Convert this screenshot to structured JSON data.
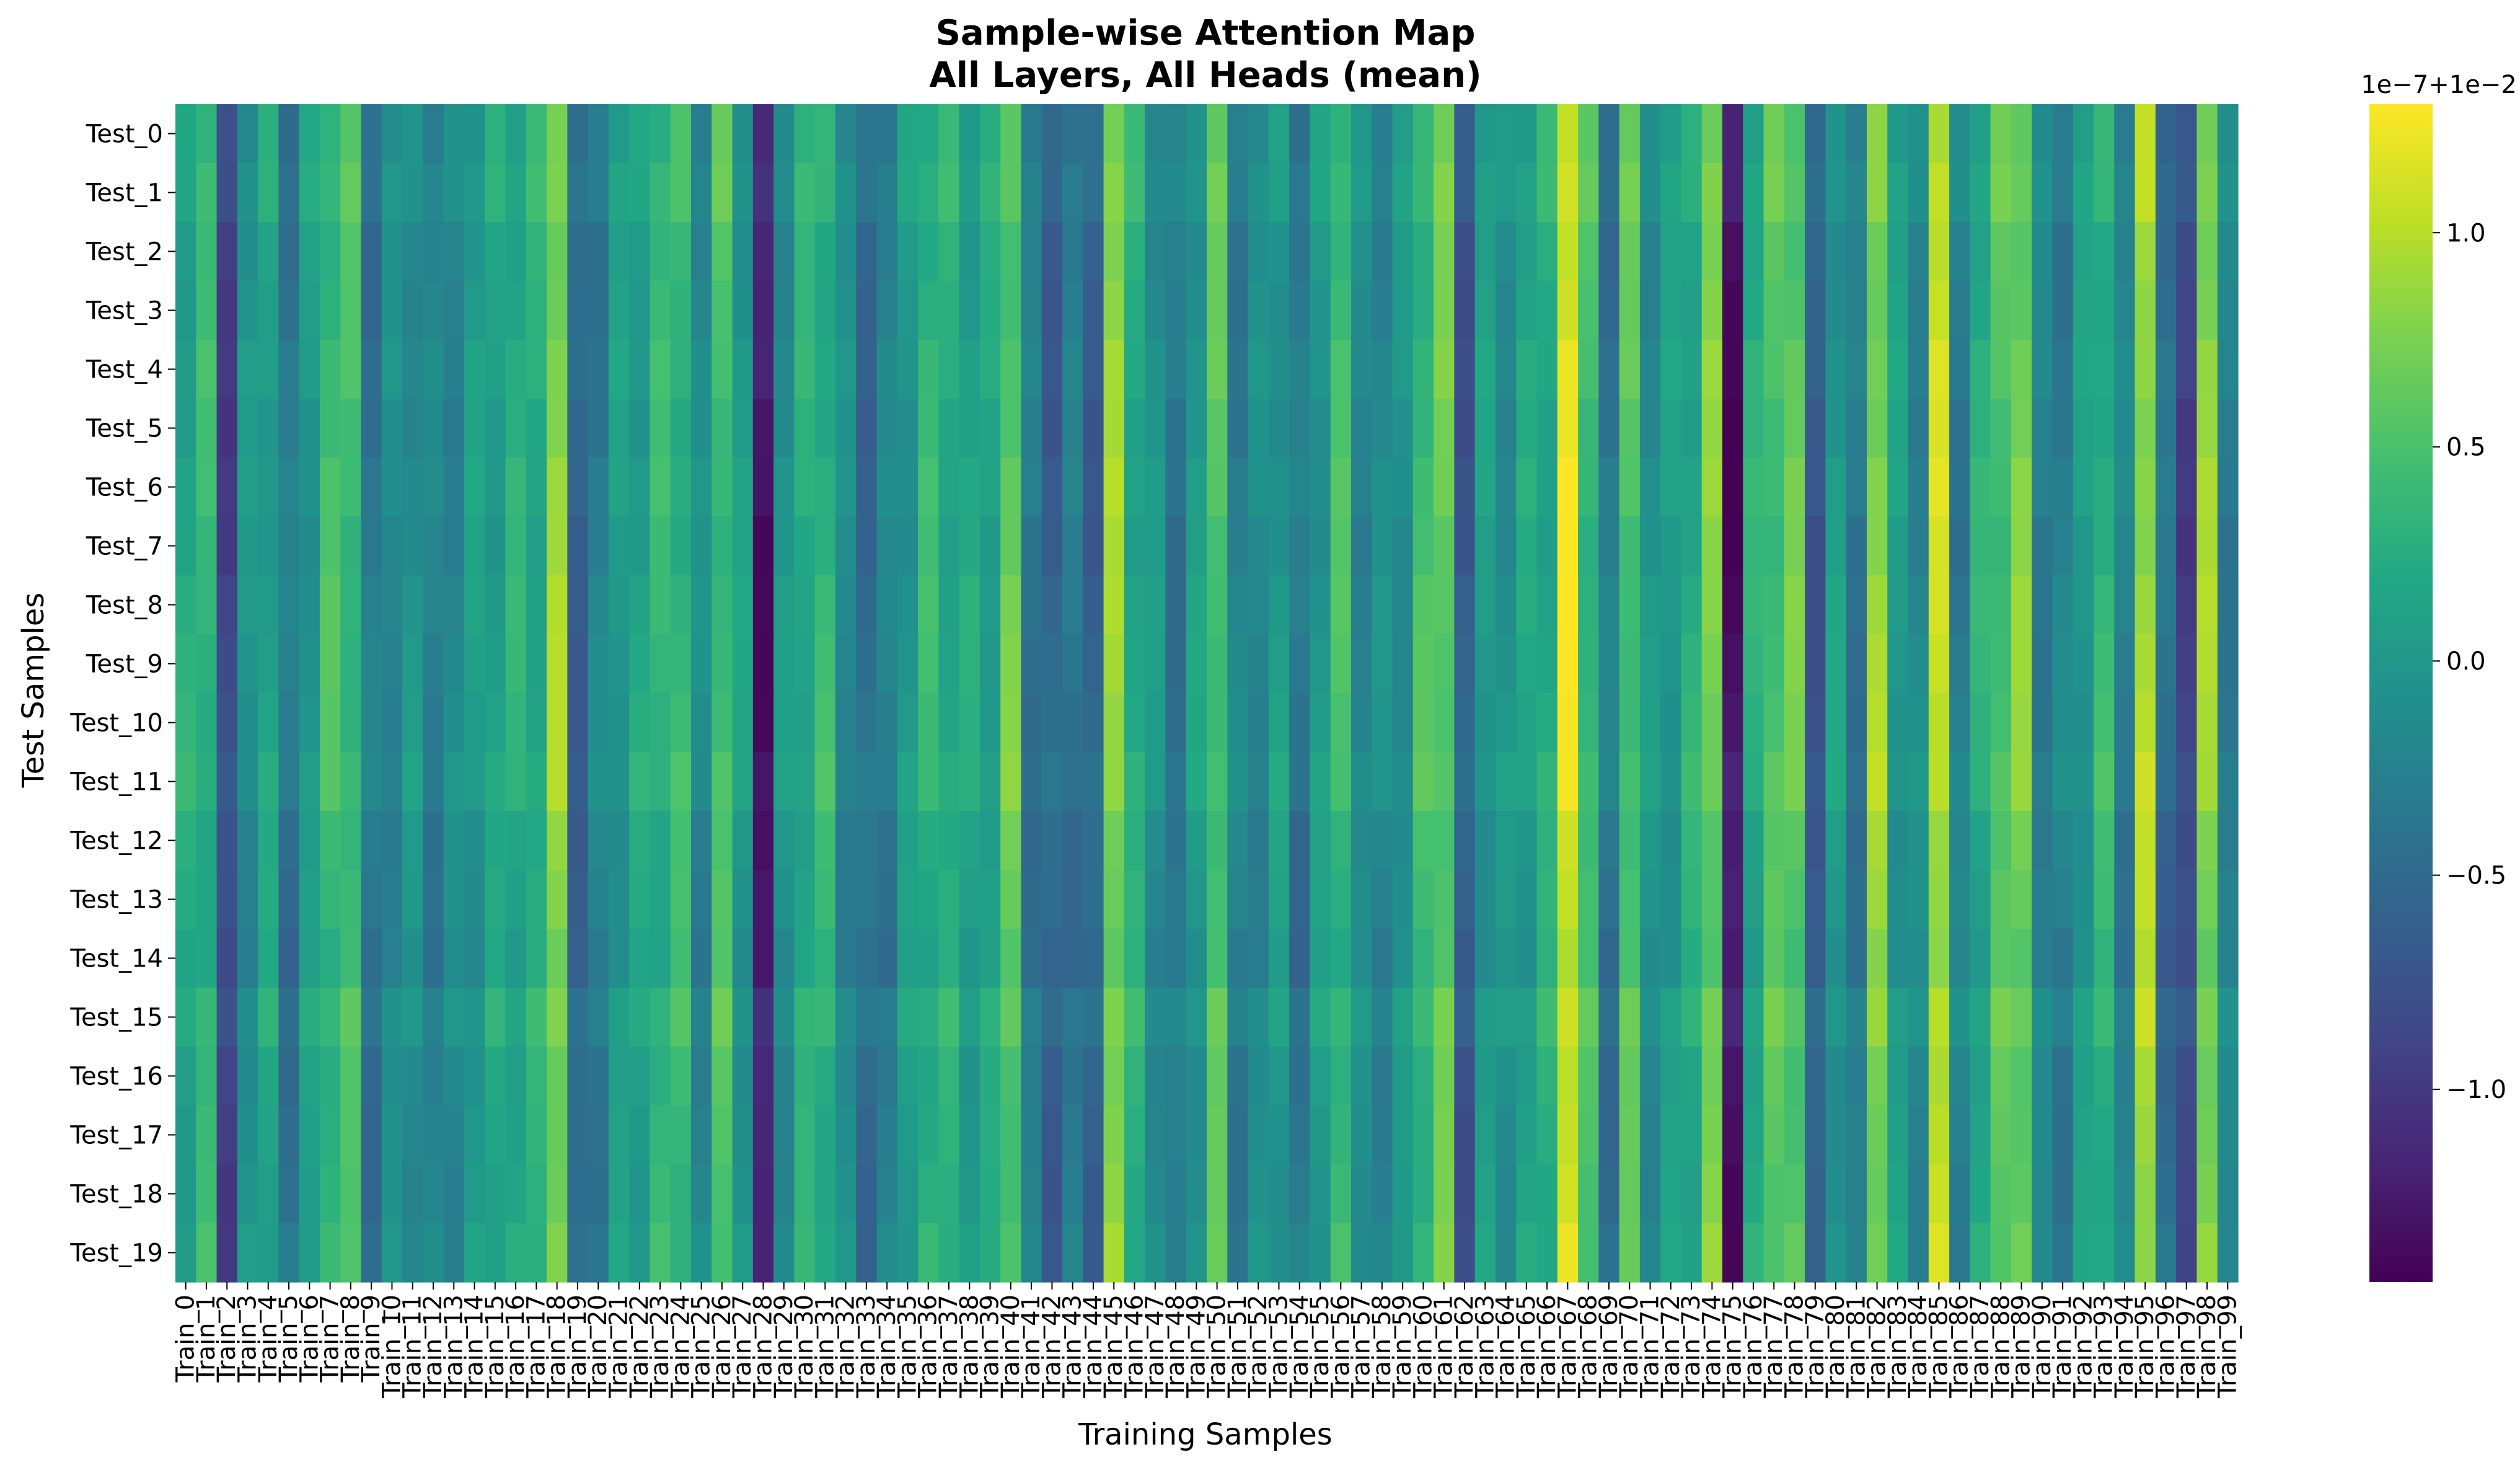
{
  "chart_data": {
    "type": "heatmap",
    "title": "Sample-wise Attention Map",
    "subtitle": "All Layers, All Heads (mean)",
    "xlabel": "Training Samples",
    "ylabel": "Test Samples",
    "colormap": "viridis",
    "colorbar": {
      "offset_label": "1e−7+1e−2",
      "range": [
        -1.45,
        1.3
      ],
      "ticks": [
        {
          "value": 1.0,
          "label": "1.0"
        },
        {
          "value": 0.5,
          "label": "0.5"
        },
        {
          "value": 0.0,
          "label": "0.0"
        },
        {
          "value": -0.5,
          "label": "−0.5"
        },
        {
          "value": -1.0,
          "label": "−1.0"
        }
      ]
    },
    "rows": [
      "Test_0",
      "Test_1",
      "Test_2",
      "Test_3",
      "Test_4",
      "Test_5",
      "Test_6",
      "Test_7",
      "Test_8",
      "Test_9",
      "Test_10",
      "Test_11",
      "Test_12",
      "Test_13",
      "Test_14",
      "Test_15",
      "Test_16",
      "Test_17",
      "Test_18",
      "Test_19"
    ],
    "columns": [
      "Train_0",
      "Train_1",
      "Train_2",
      "Train_3",
      "Train_4",
      "Train_5",
      "Train_6",
      "Train_7",
      "Train_8",
      "Train_9",
      "Train_10",
      "Train_11",
      "Train_12",
      "Train_13",
      "Train_14",
      "Train_15",
      "Train_16",
      "Train_17",
      "Train_18",
      "Train_19",
      "Train_20",
      "Train_21",
      "Train_22",
      "Train_23",
      "Train_24",
      "Train_25",
      "Train_26",
      "Train_27",
      "Train_28",
      "Train_29",
      "Train_30",
      "Train_31",
      "Train_32",
      "Train_33",
      "Train_34",
      "Train_35",
      "Train_36",
      "Train_37",
      "Train_38",
      "Train_39",
      "Train_40",
      "Train_41",
      "Train_42",
      "Train_43",
      "Train_44",
      "Train_45",
      "Train_46",
      "Train_47",
      "Train_48",
      "Train_49",
      "Train_50",
      "Train_51",
      "Train_52",
      "Train_53",
      "Train_54",
      "Train_55",
      "Train_56",
      "Train_57",
      "Train_58",
      "Train_59",
      "Train_60",
      "Train_61",
      "Train_62",
      "Train_63",
      "Train_64",
      "Train_65",
      "Train_66",
      "Train_67",
      "Train_68",
      "Train_69",
      "Train_70",
      "Train_71",
      "Train_72",
      "Train_73",
      "Train_74",
      "Train_75",
      "Train_76",
      "Train_77",
      "Train_78",
      "Train_79",
      "Train_80",
      "Train_81",
      "Train_82",
      "Train_83",
      "Train_84",
      "Train_85",
      "Train_86",
      "Train_87",
      "Train_88",
      "Train_89",
      "Train_90",
      "Train_91",
      "Train_92",
      "Train_93",
      "Train_94",
      "Train_95",
      "Train_96",
      "Train_97",
      "Train_98",
      "Train_99"
    ],
    "column_means": [
      0.15,
      0.3,
      -0.9,
      -0.1,
      0.1,
      -0.4,
      0.0,
      0.4,
      0.4,
      -0.4,
      -0.2,
      -0.1,
      -0.3,
      -0.2,
      0.0,
      0.1,
      0.2,
      0.2,
      0.8,
      -0.6,
      -0.3,
      0.0,
      0.1,
      0.3,
      0.35,
      -0.2,
      0.45,
      0.0,
      -1.3,
      -0.1,
      0.2,
      0.3,
      -0.2,
      -0.5,
      -0.3,
      0.0,
      0.3,
      0.2,
      0.1,
      0.1,
      0.6,
      -0.4,
      -0.6,
      -0.4,
      -0.6,
      0.8,
      0.2,
      -0.1,
      -0.4,
      0.0,
      0.5,
      -0.3,
      -0.2,
      0.0,
      -0.4,
      0.0,
      0.4,
      -0.2,
      -0.2,
      -0.1,
      0.4,
      0.6,
      -0.7,
      0.0,
      -0.1,
      0.1,
      0.2,
      1.15,
      0.4,
      -0.4,
      0.5,
      -0.1,
      0.0,
      0.2,
      0.7,
      -1.35,
      0.2,
      0.5,
      0.6,
      -0.7,
      0.0,
      -0.4,
      0.8,
      0.0,
      -0.2,
      1.0,
      -0.3,
      0.2,
      0.5,
      0.7,
      -0.3,
      -0.3,
      0.0,
      0.3,
      -0.3,
      0.9,
      -0.5,
      -0.9,
      0.8,
      -0.3
    ],
    "row_offsets": [
      0.05,
      0.1,
      0.0,
      0.0,
      0.05,
      0.0,
      0.05,
      0.0,
      0.05,
      0.05,
      0.05,
      0.1,
      0.0,
      0.0,
      -0.05,
      0.1,
      0.0,
      0.0,
      0.0,
      0.05
    ],
    "noise_amplitude": 0.15
  }
}
